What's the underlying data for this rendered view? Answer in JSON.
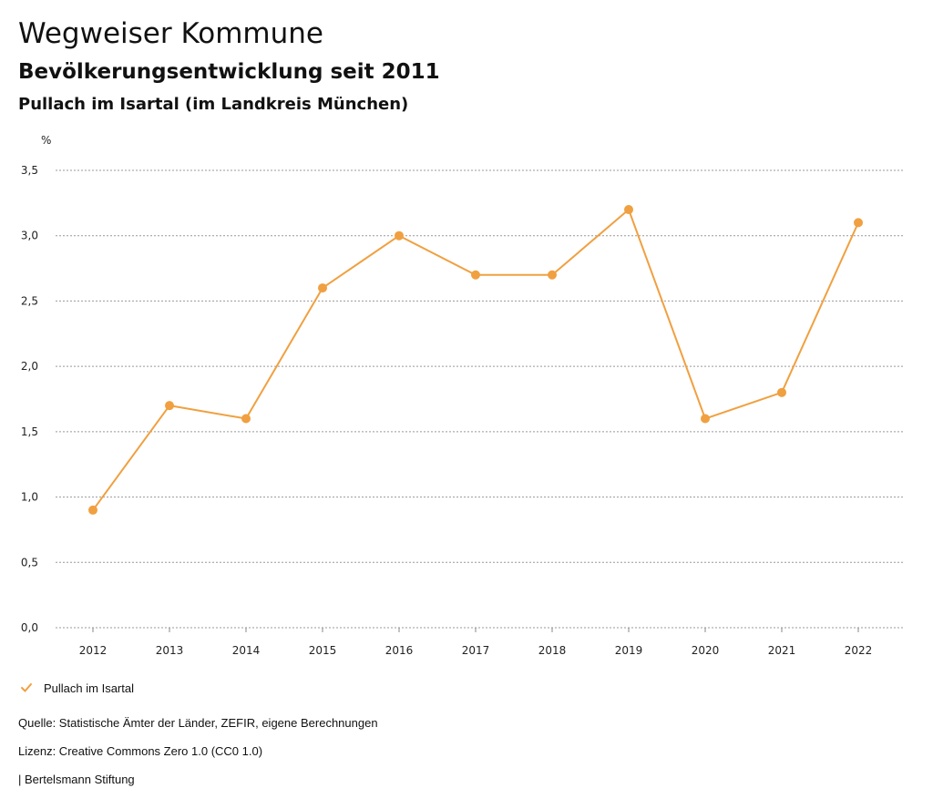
{
  "header": {
    "title": "Wegweiser Kommune",
    "subtitle": "Bevölkerungsentwicklung seit 2011",
    "region": "Pullach im Isartal (im Landkreis München)"
  },
  "chart_data": {
    "type": "line",
    "title": "Bevölkerungsentwicklung seit 2011",
    "xlabel": "",
    "ylabel": "%",
    "ylim": [
      0,
      3.5
    ],
    "yticks": [
      "0,0",
      "0,5",
      "1,0",
      "1,5",
      "2,0",
      "2,5",
      "3,0",
      "3,5"
    ],
    "yticks_values": [
      0,
      0.5,
      1.0,
      1.5,
      2.0,
      2.5,
      3.0,
      3.5
    ],
    "categories": [
      "2012",
      "2013",
      "2014",
      "2015",
      "2016",
      "2017",
      "2018",
      "2019",
      "2020",
      "2021",
      "2022"
    ],
    "series": [
      {
        "name": "Pullach im Isartal",
        "color": "#f0a040",
        "values": [
          0.9,
          1.7,
          1.6,
          2.6,
          3.0,
          2.7,
          2.7,
          3.2,
          1.6,
          1.8,
          3.1
        ]
      }
    ],
    "grid": true,
    "legend": "bottom-left"
  },
  "legend": {
    "label": "Pullach im Isartal",
    "icon": "check-icon",
    "color": "#f0a040"
  },
  "footer": {
    "source": "Quelle: Statistische Ämter der Länder, ZEFIR, eigene Berechnungen",
    "license": "Lizenz: Creative Commons Zero 1.0 (CC0 1.0)",
    "org": "| Bertelsmann Stiftung"
  }
}
